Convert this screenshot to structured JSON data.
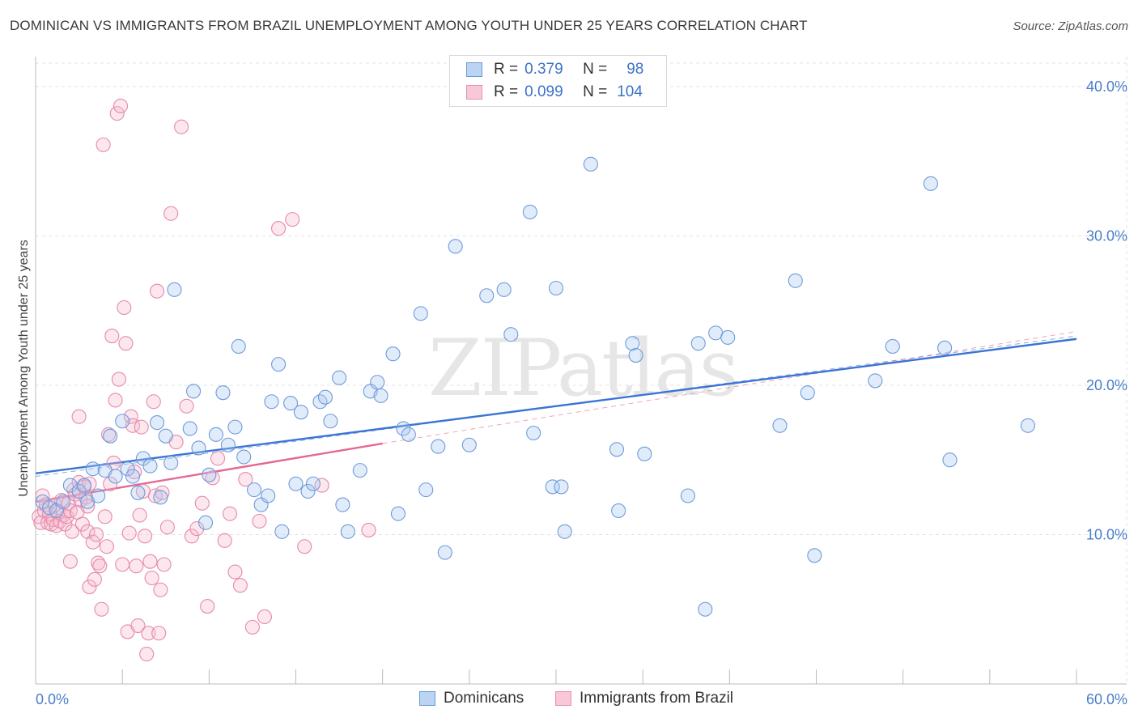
{
  "title": "DOMINICAN VS IMMIGRANTS FROM BRAZIL UNEMPLOYMENT AMONG YOUTH UNDER 25 YEARS CORRELATION CHART",
  "source": "Source: ZipAtlas.com",
  "watermark": "ZIPatlas",
  "colors": {
    "blue": "#3b74d4",
    "blue_fill": "#a9c8f0",
    "pink": "#e46896",
    "pink_fill": "#f6b9cd",
    "tick_text": "#4a7ecb",
    "grid": "#e3e3e3"
  },
  "legend": {
    "rows": [
      {
        "r_label": "R =",
        "r_value": "0.379",
        "n_label": "N =",
        "n_value": "98"
      },
      {
        "r_label": "R =",
        "r_value": "0.099",
        "n_label": "N =",
        "n_value": "104"
      }
    ]
  },
  "bottom_legend": [
    "Dominicans",
    "Immigrants from Brazil"
  ],
  "chart_data": {
    "type": "scatter",
    "title": "DOMINICAN VS IMMIGRANTS FROM BRAZIL UNEMPLOYMENT AMONG YOUTH UNDER 25 YEARS CORRELATION CHART",
    "xlabel": "",
    "ylabel": "Unemployment Among Youth under 25 years",
    "xlim": [
      0,
      60
    ],
    "ylim": [
      0,
      42
    ],
    "x_ticks": [
      "0.0%",
      "60.0%"
    ],
    "y_ticks": [
      {
        "value": 10,
        "label": "10.0%"
      },
      {
        "value": 20,
        "label": "20.0%"
      },
      {
        "value": 30,
        "label": "30.0%"
      },
      {
        "value": 40,
        "label": "40.0%"
      }
    ],
    "grid": true,
    "legend_position": "top-center",
    "series": [
      {
        "name": "Dominicans",
        "color": "#3b74d4",
        "trend": {
          "x": [
            0,
            60
          ],
          "y": [
            14.1,
            23.1
          ],
          "style": "solid"
        },
        "trend_ext": {
          "x": [
            0,
            60
          ],
          "y": [
            13.9,
            23.3
          ],
          "style": "dashed"
        },
        "points": [
          [
            0.4,
            12.2
          ],
          [
            0.8,
            11.8
          ],
          [
            1.2,
            11.6
          ],
          [
            1.6,
            12.2
          ],
          [
            2.0,
            13.3
          ],
          [
            2.5,
            12.9
          ],
          [
            2.8,
            13.3
          ],
          [
            3.0,
            12.2
          ],
          [
            3.3,
            14.4
          ],
          [
            3.6,
            12.6
          ],
          [
            4.0,
            14.3
          ],
          [
            4.3,
            16.6
          ],
          [
            4.6,
            13.9
          ],
          [
            5.0,
            17.6
          ],
          [
            5.3,
            14.4
          ],
          [
            5.6,
            13.9
          ],
          [
            5.9,
            12.8
          ],
          [
            6.2,
            15.1
          ],
          [
            6.6,
            14.6
          ],
          [
            7.0,
            17.5
          ],
          [
            7.2,
            12.5
          ],
          [
            7.5,
            16.6
          ],
          [
            7.8,
            14.8
          ],
          [
            8.0,
            26.4
          ],
          [
            8.9,
            17.1
          ],
          [
            9.1,
            19.6
          ],
          [
            9.4,
            15.8
          ],
          [
            9.8,
            10.8
          ],
          [
            10.0,
            14.0
          ],
          [
            10.4,
            16.7
          ],
          [
            10.8,
            19.5
          ],
          [
            11.1,
            16.0
          ],
          [
            11.5,
            17.2
          ],
          [
            11.7,
            22.6
          ],
          [
            12.0,
            15.2
          ],
          [
            12.6,
            13.0
          ],
          [
            13.0,
            12.0
          ],
          [
            13.4,
            12.6
          ],
          [
            13.6,
            18.9
          ],
          [
            14.0,
            21.4
          ],
          [
            14.2,
            10.2
          ],
          [
            14.7,
            18.8
          ],
          [
            15.0,
            13.4
          ],
          [
            15.3,
            18.2
          ],
          [
            15.7,
            12.9
          ],
          [
            16.0,
            13.4
          ],
          [
            16.4,
            18.9
          ],
          [
            16.7,
            19.2
          ],
          [
            17.0,
            17.6
          ],
          [
            17.5,
            20.5
          ],
          [
            17.7,
            12.0
          ],
          [
            18.0,
            10.2
          ],
          [
            18.7,
            14.3
          ],
          [
            19.3,
            19.6
          ],
          [
            19.7,
            20.2
          ],
          [
            19.9,
            19.3
          ],
          [
            20.6,
            22.1
          ],
          [
            20.9,
            11.4
          ],
          [
            21.2,
            17.1
          ],
          [
            21.5,
            16.7
          ],
          [
            22.2,
            24.8
          ],
          [
            22.5,
            13.0
          ],
          [
            23.2,
            15.9
          ],
          [
            23.6,
            8.8
          ],
          [
            24.2,
            29.3
          ],
          [
            25.0,
            16.0
          ],
          [
            26.0,
            26.0
          ],
          [
            27.0,
            26.4
          ],
          [
            27.4,
            23.4
          ],
          [
            28.5,
            31.6
          ],
          [
            28.7,
            16.8
          ],
          [
            29.8,
            13.2
          ],
          [
            30.0,
            26.5
          ],
          [
            30.3,
            13.2
          ],
          [
            30.5,
            10.2
          ],
          [
            32.0,
            34.8
          ],
          [
            33.5,
            15.7
          ],
          [
            33.6,
            11.6
          ],
          [
            34.4,
            22.8
          ],
          [
            34.6,
            22.0
          ],
          [
            35.1,
            15.4
          ],
          [
            37.6,
            12.6
          ],
          [
            38.2,
            22.8
          ],
          [
            38.6,
            5.0
          ],
          [
            39.2,
            23.5
          ],
          [
            39.9,
            23.2
          ],
          [
            42.9,
            17.3
          ],
          [
            43.8,
            27.0
          ],
          [
            44.5,
            19.5
          ],
          [
            44.9,
            8.6
          ],
          [
            48.4,
            20.3
          ],
          [
            49.4,
            22.6
          ],
          [
            51.6,
            33.5
          ],
          [
            52.4,
            22.5
          ],
          [
            52.7,
            15.0
          ],
          [
            57.2,
            17.3
          ]
        ]
      },
      {
        "name": "Immigrants from Brazil",
        "color": "#e46896",
        "trend": {
          "x": [
            0,
            20
          ],
          "y": [
            12.2,
            16.1
          ],
          "style": "solid"
        },
        "trend_ext": {
          "x": [
            20,
            60
          ],
          "y": [
            16.1,
            23.6
          ],
          "style": "dashed"
        },
        "points": [
          [
            0.2,
            11.2
          ],
          [
            0.3,
            10.8
          ],
          [
            0.4,
            12.6
          ],
          [
            0.5,
            11.6
          ],
          [
            0.6,
            12.0
          ],
          [
            0.7,
            10.8
          ],
          [
            0.8,
            11.4
          ],
          [
            0.9,
            10.7
          ],
          [
            1.0,
            11.0
          ],
          [
            1.1,
            12.0
          ],
          [
            1.2,
            10.6
          ],
          [
            1.3,
            11.5
          ],
          [
            1.4,
            10.9
          ],
          [
            1.5,
            12.3
          ],
          [
            1.6,
            11.3
          ],
          [
            1.7,
            10.7
          ],
          [
            1.8,
            11.2
          ],
          [
            1.9,
            12.1
          ],
          [
            2.0,
            11.6
          ],
          [
            2.1,
            10.2
          ],
          [
            2.2,
            13.0
          ],
          [
            2.3,
            12.7
          ],
          [
            2.4,
            11.5
          ],
          [
            2.5,
            13.5
          ],
          [
            2.6,
            12.3
          ],
          [
            2.7,
            10.7
          ],
          [
            2.8,
            13.2
          ],
          [
            2.9,
            12.5
          ],
          [
            3.0,
            11.9
          ],
          [
            3.1,
            13.4
          ],
          [
            2.0,
            8.2
          ],
          [
            2.5,
            17.9
          ],
          [
            3.0,
            10.2
          ],
          [
            3.1,
            6.5
          ],
          [
            3.3,
            9.5
          ],
          [
            3.4,
            7.0
          ],
          [
            3.5,
            10.0
          ],
          [
            3.6,
            8.1
          ],
          [
            3.7,
            7.9
          ],
          [
            3.8,
            5.0
          ],
          [
            3.9,
            36.1
          ],
          [
            4.0,
            11.2
          ],
          [
            4.1,
            9.2
          ],
          [
            4.2,
            16.7
          ],
          [
            4.3,
            13.4
          ],
          [
            4.4,
            23.3
          ],
          [
            4.5,
            14.8
          ],
          [
            4.6,
            19.0
          ],
          [
            4.7,
            38.2
          ],
          [
            4.8,
            20.4
          ],
          [
            4.9,
            38.7
          ],
          [
            5.0,
            8.0
          ],
          [
            5.1,
            25.2
          ],
          [
            5.2,
            22.8
          ],
          [
            5.3,
            3.5
          ],
          [
            5.4,
            10.1
          ],
          [
            5.5,
            17.9
          ],
          [
            5.6,
            17.3
          ],
          [
            5.7,
            14.2
          ],
          [
            5.8,
            7.9
          ],
          [
            5.9,
            3.9
          ],
          [
            6.0,
            11.3
          ],
          [
            6.1,
            17.2
          ],
          [
            6.2,
            12.9
          ],
          [
            6.3,
            9.9
          ],
          [
            6.4,
            2.0
          ],
          [
            6.5,
            3.4
          ],
          [
            6.6,
            8.2
          ],
          [
            6.7,
            7.1
          ],
          [
            6.8,
            18.9
          ],
          [
            6.9,
            12.6
          ],
          [
            7.0,
            26.3
          ],
          [
            7.1,
            3.4
          ],
          [
            7.2,
            6.3
          ],
          [
            7.3,
            12.8
          ],
          [
            7.4,
            8.0
          ],
          [
            7.6,
            10.5
          ],
          [
            7.8,
            31.5
          ],
          [
            8.1,
            16.2
          ],
          [
            8.4,
            37.3
          ],
          [
            8.7,
            18.6
          ],
          [
            9.0,
            9.9
          ],
          [
            9.3,
            10.4
          ],
          [
            9.6,
            12.1
          ],
          [
            9.9,
            5.2
          ],
          [
            10.2,
            13.8
          ],
          [
            10.5,
            15.1
          ],
          [
            10.9,
            9.6
          ],
          [
            11.2,
            11.4
          ],
          [
            11.5,
            7.5
          ],
          [
            11.8,
            6.6
          ],
          [
            12.1,
            13.7
          ],
          [
            12.5,
            3.8
          ],
          [
            12.9,
            10.9
          ],
          [
            13.2,
            4.5
          ],
          [
            14.0,
            30.5
          ],
          [
            14.8,
            31.1
          ],
          [
            15.5,
            9.2
          ],
          [
            16.5,
            13.3
          ],
          [
            19.2,
            10.3
          ]
        ]
      }
    ]
  }
}
